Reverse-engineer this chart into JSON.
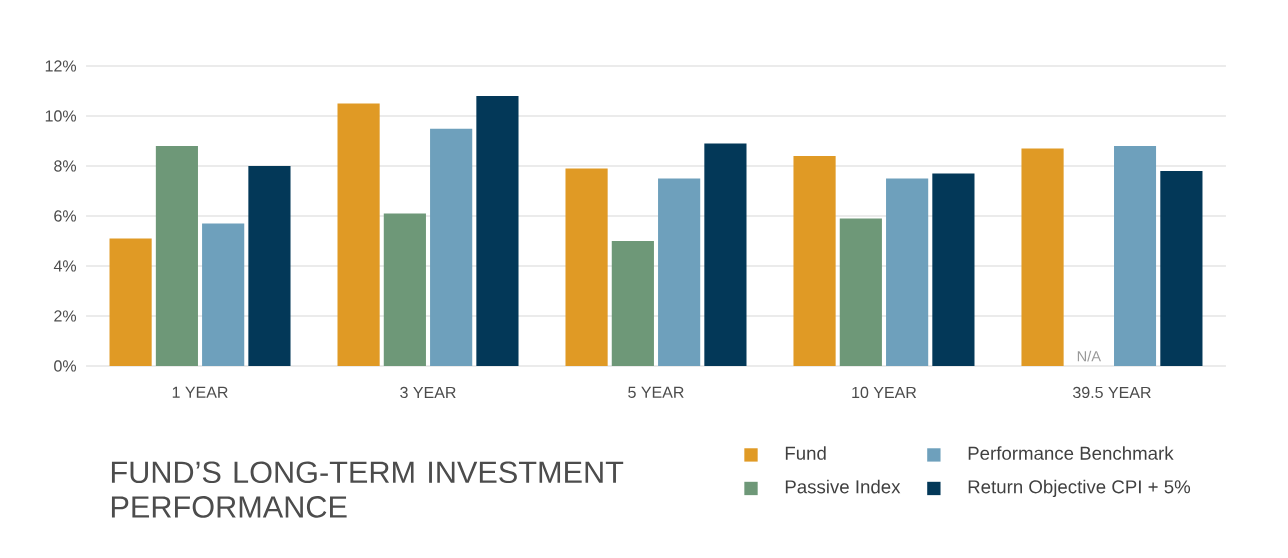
{
  "chart_data": {
    "type": "bar",
    "title": "FUND’S LONG-TERM INVESTMENT PERFORMANCE",
    "categories": [
      "1 YEAR",
      "3 YEAR",
      "5 YEAR",
      "10 YEAR",
      "39.5 YEAR"
    ],
    "series": [
      {
        "name": "Fund",
        "color": "#e09a25",
        "values": [
          5.1,
          10.5,
          7.9,
          8.4,
          8.7
        ]
      },
      {
        "name": "Passive Index",
        "color": "#6e9878",
        "values": [
          8.8,
          6.1,
          5.0,
          5.9,
          null
        ],
        "value_labels": [
          null,
          null,
          null,
          null,
          "N/A"
        ]
      },
      {
        "name": "Performance Benchmark",
        "color": "#6ea0bc",
        "values": [
          5.7,
          9.5,
          7.5,
          7.5,
          8.8
        ]
      },
      {
        "name": "Return Objective CPI + 5%",
        "color": "#033858",
        "values": [
          8.0,
          10.8,
          8.9,
          7.7,
          7.8
        ]
      }
    ],
    "ylim": [
      0,
      12
    ],
    "yticks": [
      {
        "value": 0,
        "label": "0%"
      },
      {
        "value": 2,
        "label": "2%"
      },
      {
        "value": 4,
        "label": "4%"
      },
      {
        "value": 6,
        "label": "6%"
      },
      {
        "value": 8,
        "label": "8%"
      },
      {
        "value": 10,
        "label": "10%"
      },
      {
        "value": 12,
        "label": "12%"
      }
    ],
    "grid": "y",
    "legend": "bottom right"
  }
}
